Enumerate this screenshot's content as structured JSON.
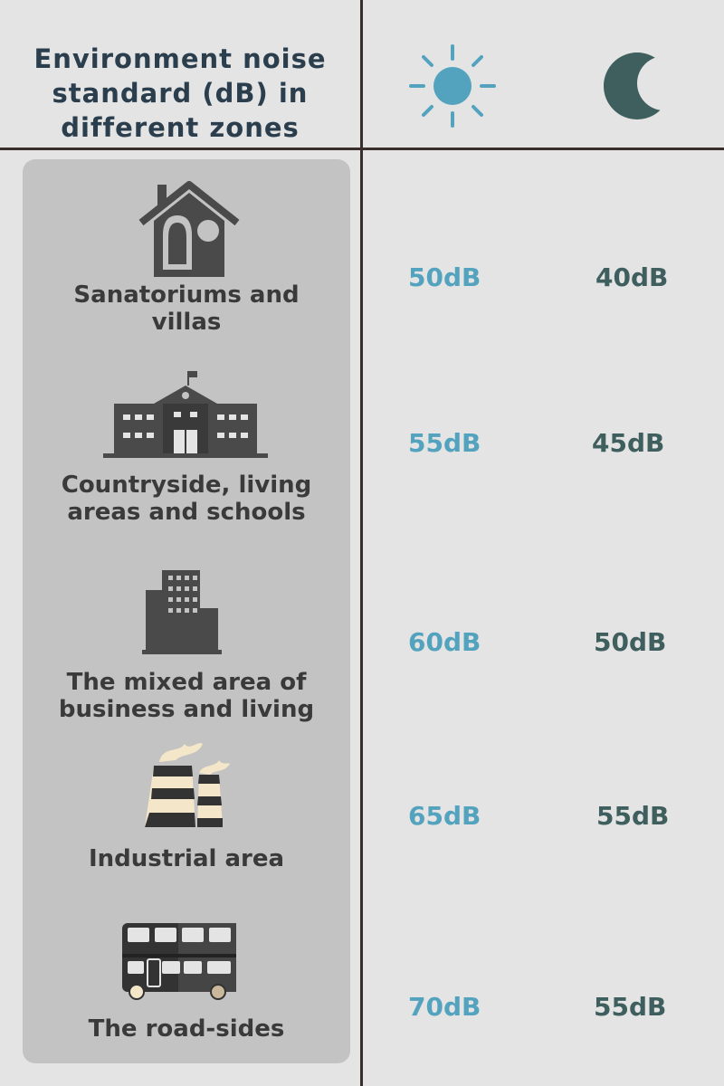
{
  "header": {
    "title_lines": [
      "Environment  noise",
      "standard (dB) in",
      "different zones"
    ],
    "day_icon": "sun-icon",
    "night_icon": "moon-icon"
  },
  "colors": {
    "title": "#2b3e4d",
    "day": "#53a3bf",
    "night": "#3f5e5e",
    "panel": "#c3c3c3",
    "icon": "#4a4a4a"
  },
  "zones": [
    {
      "label_lines": [
        "Sanatoriums and",
        "villas"
      ],
      "icon": "house-icon",
      "day": "50dB",
      "night": "40dB"
    },
    {
      "label_lines": [
        "Countryside, living",
        "areas and schools"
      ],
      "icon": "school-icon",
      "day": "55dB",
      "night": "45dB"
    },
    {
      "label_lines": [
        "The mixed area of",
        "business and living"
      ],
      "icon": "office-building-icon",
      "day": "60dB",
      "night": "50dB"
    },
    {
      "label_lines": [
        "Industrial area"
      ],
      "icon": "factory-icon",
      "day": "65dB",
      "night": "55dB"
    },
    {
      "label_lines": [
        "The road-sides"
      ],
      "icon": "bus-icon",
      "day": "70dB",
      "night": "55dB"
    }
  ]
}
